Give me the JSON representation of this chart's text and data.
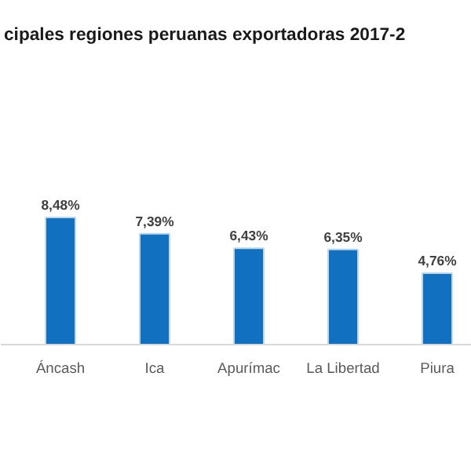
{
  "chart_data": {
    "type": "bar",
    "title": "cipales regiones peruanas exportadoras 2017-2",
    "categories": [
      "Áncash",
      "Ica",
      "Apurímac",
      "La Libertad",
      "Piura"
    ],
    "values": [
      8.48,
      7.39,
      6.43,
      6.35,
      4.76
    ],
    "value_labels": [
      "8,48%",
      "7,39%",
      "6,43%",
      "6,35%",
      "4,76%"
    ],
    "color": "#1170bf",
    "grid": false
  }
}
